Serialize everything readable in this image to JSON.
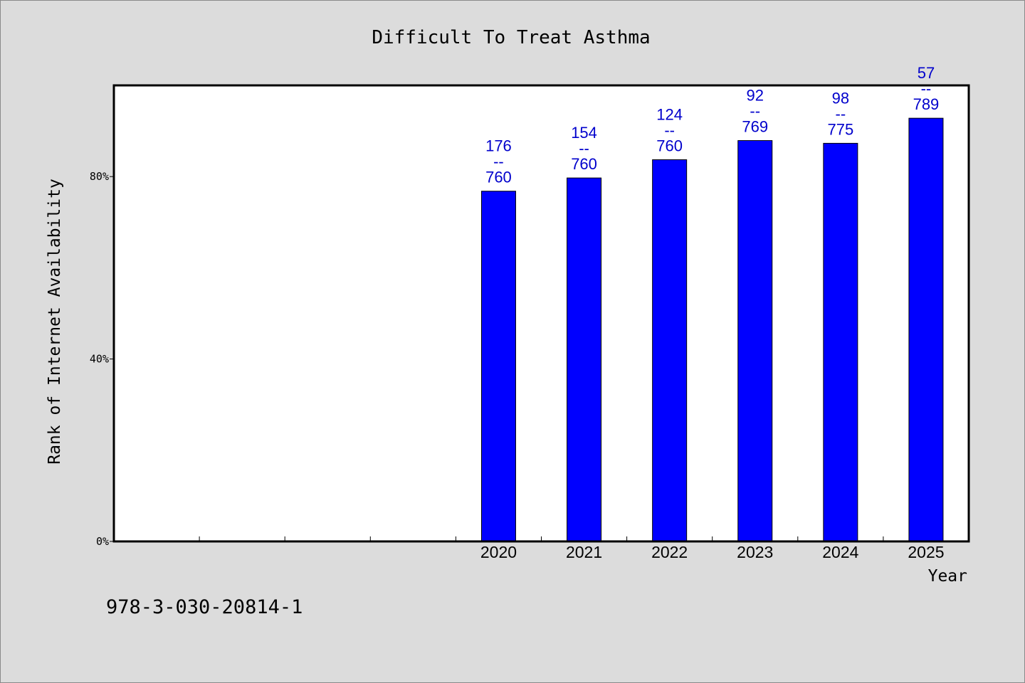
{
  "chart_data": {
    "type": "bar",
    "title": "Difficult To Treat Asthma",
    "xlabel": "Year",
    "ylabel": "Rank of Internet Availability",
    "categories": [
      "",
      "",
      "",
      "",
      "2020",
      "2021",
      "2022",
      "2023",
      "2024",
      "2025"
    ],
    "values": [
      null,
      null,
      null,
      null,
      76.8,
      79.7,
      83.7,
      87.9,
      87.3,
      92.8
    ],
    "data_labels": [
      null,
      null,
      null,
      null,
      [
        "176",
        "--",
        "760"
      ],
      [
        "154",
        "--",
        "760"
      ],
      [
        "124",
        "--",
        "760"
      ],
      [
        "92",
        "--",
        "769"
      ],
      [
        "98",
        "--",
        "775"
      ],
      [
        "57",
        "--",
        "789"
      ]
    ],
    "y_ticks": [
      {
        "value": 0,
        "label": "0%"
      },
      {
        "value": 40,
        "label": "40%"
      },
      {
        "value": 80,
        "label": "80%"
      }
    ],
    "ylim": [
      0,
      100
    ],
    "grid": false,
    "legend": "none",
    "bar_color": "#0000ff",
    "label_color": "#0000cc"
  },
  "footer": {
    "id_text": "978-3-030-20814-1"
  }
}
